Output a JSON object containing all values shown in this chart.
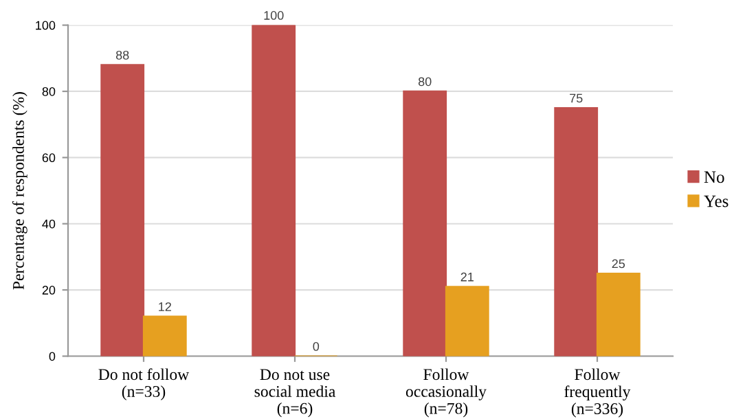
{
  "chart_data": {
    "type": "bar",
    "ylabel": "Percentage of respondents (%)",
    "categories": [
      "Do not follow\n(n=33)",
      "Do not use\nsocial media\n(n=6)",
      "Follow\noccasionally\n(n=78)",
      "Follow\nfrequently\n(n=336)"
    ],
    "series": [
      {
        "name": "No",
        "color": "#c0504d",
        "values": [
          88,
          100,
          80,
          75
        ]
      },
      {
        "name": "Yes",
        "color": "#e6a020",
        "values": [
          12,
          0,
          21,
          25
        ]
      }
    ],
    "ylim": [
      0,
      100
    ],
    "yticks": [
      0,
      20,
      40,
      60,
      80,
      100
    ],
    "grid": "y",
    "legend": "right",
    "data_labels": true
  }
}
